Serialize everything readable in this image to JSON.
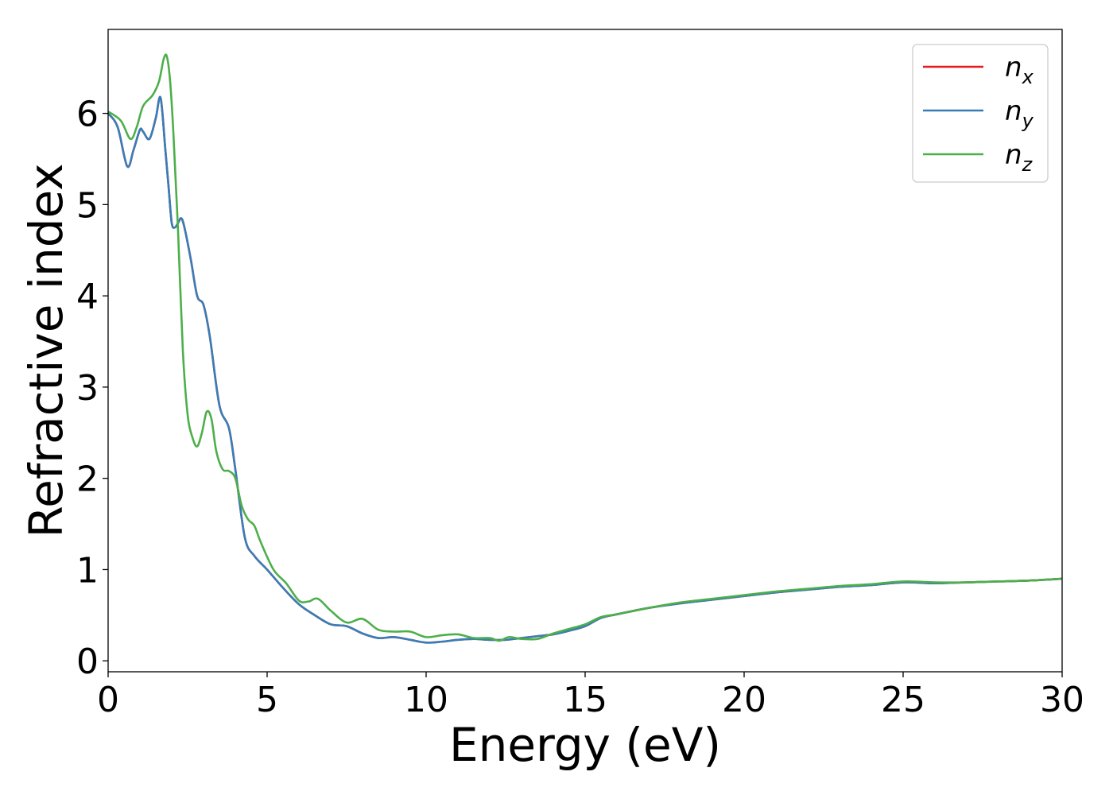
{
  "chart_data": {
    "type": "line",
    "xlabel": "Energy (eV)",
    "ylabel": "Refractive index",
    "xlim": [
      0,
      30
    ],
    "ylim": [
      -0.12,
      6.92
    ],
    "xticks": [
      "0",
      "5",
      "10",
      "15",
      "20",
      "25",
      "30"
    ],
    "yticks": [
      "0",
      "1",
      "2",
      "3",
      "4",
      "5",
      "6"
    ],
    "grid": false,
    "legend_position": "top-right",
    "series": [
      {
        "name": "n",
        "subscript": "x",
        "color": "#e41a1c",
        "x": [
          0,
          0.3,
          0.6,
          0.8,
          1.0,
          1.1,
          1.3,
          1.5,
          1.65,
          1.8,
          1.9,
          2.0,
          2.1,
          2.2,
          2.3,
          2.4,
          2.6,
          2.8,
          3.0,
          3.2,
          3.5,
          3.8,
          4.0,
          4.3,
          4.6,
          5.0,
          5.5,
          6.0,
          6.5,
          7.0,
          7.5,
          8.0,
          8.5,
          9.0,
          9.5,
          10.0,
          10.5,
          11.0,
          11.5,
          12.0,
          12.5,
          13.0,
          13.5,
          14.0,
          14.5,
          15.0,
          15.5,
          16.0,
          17.0,
          18.0,
          19.0,
          20.0,
          21.0,
          22.0,
          23.0,
          24.0,
          25.0,
          26.0,
          27.0,
          28.0,
          29.0,
          30.0
        ],
        "values": [
          6.0,
          5.85,
          5.42,
          5.6,
          5.82,
          5.8,
          5.72,
          5.95,
          6.17,
          5.6,
          5.2,
          4.8,
          4.75,
          4.8,
          4.85,
          4.75,
          4.4,
          4.0,
          3.9,
          3.55,
          2.8,
          2.55,
          2.1,
          1.35,
          1.15,
          1.0,
          0.8,
          0.62,
          0.5,
          0.4,
          0.38,
          0.3,
          0.25,
          0.26,
          0.23,
          0.2,
          0.21,
          0.23,
          0.24,
          0.23,
          0.23,
          0.25,
          0.27,
          0.29,
          0.33,
          0.38,
          0.47,
          0.51,
          0.58,
          0.63,
          0.67,
          0.71,
          0.75,
          0.78,
          0.81,
          0.83,
          0.86,
          0.85,
          0.86,
          0.87,
          0.88,
          0.9
        ]
      },
      {
        "name": "n",
        "subscript": "y",
        "color": "#377eb8",
        "x": [
          0,
          0.3,
          0.6,
          0.8,
          1.0,
          1.1,
          1.3,
          1.5,
          1.65,
          1.8,
          1.9,
          2.0,
          2.1,
          2.2,
          2.3,
          2.4,
          2.6,
          2.8,
          3.0,
          3.2,
          3.5,
          3.8,
          4.0,
          4.3,
          4.6,
          5.0,
          5.5,
          6.0,
          6.5,
          7.0,
          7.5,
          8.0,
          8.5,
          9.0,
          9.5,
          10.0,
          10.5,
          11.0,
          11.5,
          12.0,
          12.5,
          13.0,
          13.5,
          14.0,
          14.5,
          15.0,
          15.5,
          16.0,
          17.0,
          18.0,
          19.0,
          20.0,
          21.0,
          22.0,
          23.0,
          24.0,
          25.0,
          26.0,
          27.0,
          28.0,
          29.0,
          30.0
        ],
        "values": [
          6.0,
          5.85,
          5.42,
          5.6,
          5.82,
          5.8,
          5.72,
          5.95,
          6.17,
          5.6,
          5.2,
          4.8,
          4.75,
          4.8,
          4.85,
          4.75,
          4.4,
          4.0,
          3.9,
          3.55,
          2.8,
          2.55,
          2.1,
          1.35,
          1.15,
          1.0,
          0.8,
          0.62,
          0.5,
          0.4,
          0.38,
          0.3,
          0.25,
          0.26,
          0.23,
          0.2,
          0.21,
          0.23,
          0.24,
          0.23,
          0.23,
          0.25,
          0.27,
          0.29,
          0.33,
          0.38,
          0.47,
          0.51,
          0.58,
          0.63,
          0.67,
          0.71,
          0.75,
          0.78,
          0.81,
          0.83,
          0.86,
          0.85,
          0.86,
          0.87,
          0.88,
          0.9
        ]
      },
      {
        "name": "n",
        "subscript": "z",
        "color": "#4daf4a",
        "x": [
          0,
          0.4,
          0.7,
          0.9,
          1.1,
          1.4,
          1.6,
          1.75,
          1.85,
          1.95,
          2.05,
          2.2,
          2.35,
          2.5,
          2.65,
          2.8,
          2.95,
          3.1,
          3.25,
          3.4,
          3.6,
          3.8,
          4.0,
          4.2,
          4.4,
          4.6,
          4.8,
          5.2,
          5.6,
          6.0,
          6.3,
          6.6,
          7.0,
          7.5,
          8.0,
          8.5,
          9.0,
          9.5,
          10.0,
          10.5,
          11.0,
          11.5,
          12.0,
          12.3,
          12.6,
          13.0,
          13.5,
          14.0,
          14.5,
          15.0,
          15.5,
          16.0,
          17.0,
          18.0,
          19.0,
          20.0,
          21.0,
          22.0,
          23.0,
          24.0,
          25.0,
          26.0,
          27.0,
          28.0,
          29.0,
          30.0
        ],
        "values": [
          6.02,
          5.92,
          5.72,
          5.85,
          6.08,
          6.2,
          6.35,
          6.6,
          6.62,
          6.35,
          5.8,
          4.7,
          3.4,
          2.7,
          2.45,
          2.35,
          2.5,
          2.73,
          2.65,
          2.3,
          2.1,
          2.08,
          2.0,
          1.7,
          1.55,
          1.48,
          1.3,
          1.0,
          0.85,
          0.66,
          0.65,
          0.68,
          0.55,
          0.42,
          0.46,
          0.34,
          0.32,
          0.32,
          0.26,
          0.28,
          0.29,
          0.25,
          0.25,
          0.22,
          0.26,
          0.24,
          0.24,
          0.3,
          0.35,
          0.4,
          0.48,
          0.51,
          0.58,
          0.64,
          0.68,
          0.72,
          0.76,
          0.79,
          0.82,
          0.84,
          0.87,
          0.86,
          0.86,
          0.87,
          0.88,
          0.9
        ]
      }
    ]
  }
}
